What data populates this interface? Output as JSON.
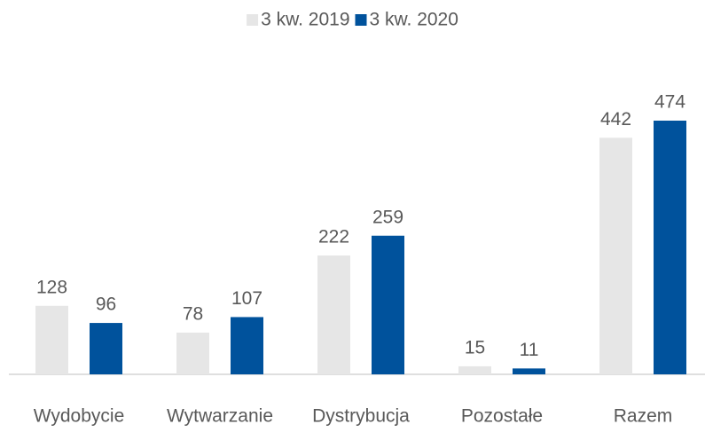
{
  "chart_data": {
    "type": "bar",
    "categories": [
      "Wydobycie",
      "Wytwarzanie",
      "Dystrybucja",
      "Pozostałe",
      "Razem"
    ],
    "series": [
      {
        "name": "3 kw. 2019",
        "color": "#e6e6e6",
        "values": [
          128,
          78,
          222,
          15,
          442
        ]
      },
      {
        "name": "3 kw. 2020",
        "color": "#00529c",
        "values": [
          96,
          107,
          259,
          11,
          474
        ]
      }
    ],
    "legend": "top"
  }
}
